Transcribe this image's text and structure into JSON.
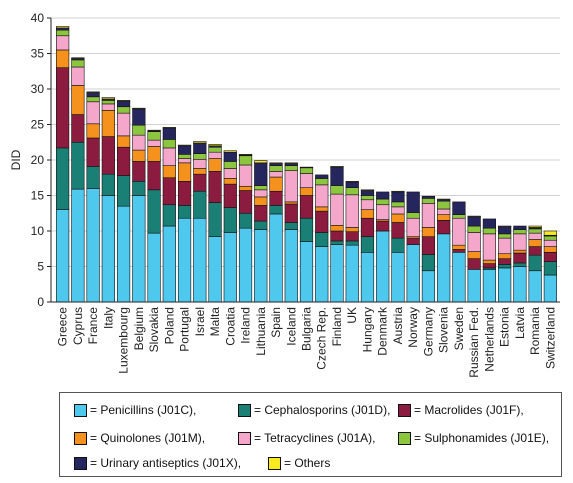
{
  "chart_data": {
    "type": "bar",
    "stacked": true,
    "ylabel": "DID",
    "xlabel": "",
    "ylim": [
      0,
      40
    ],
    "yticks": [
      0,
      5,
      10,
      15,
      20,
      25,
      30,
      35,
      40
    ],
    "grid": true,
    "categories": [
      "Greece",
      "Cyprus",
      "France",
      "Italy",
      "Luxembourg",
      "Belgium",
      "Slovakia",
      "Poland",
      "Portugal",
      "Israel",
      "Malta",
      "Croatia",
      "Ireland",
      "Lithuania",
      "Spain",
      "Iceland",
      "Bulgaria",
      "Czech Rep.",
      "Finland",
      "UK",
      "Hungary",
      "Denmark",
      "Austria",
      "Norway",
      "Germany",
      "Slovenia",
      "Sweden",
      "Russian Fed.",
      "Netherlands",
      "Estonia",
      "Latvia",
      "Romania",
      "Switzerland"
    ],
    "series": [
      {
        "name": "= Penicillins (J01C),",
        "color": "#4fc8ee",
        "values": [
          13.0,
          15.9,
          16.0,
          15.0,
          13.5,
          15.0,
          9.7,
          10.7,
          11.8,
          11.8,
          9.2,
          9.8,
          10.4,
          10.2,
          12.4,
          10.2,
          8.5,
          7.8,
          8.1,
          8.0,
          7.0,
          10.0,
          7.0,
          8.1,
          4.4,
          9.6,
          7.0,
          4.6,
          4.6,
          4.8,
          5.0,
          4.4,
          3.8
        ]
      },
      {
        "name": "= Cephalosporins (J01D),",
        "color": "#1a8076",
        "values": [
          8.7,
          6.6,
          3.1,
          3.0,
          4.3,
          2.0,
          6.1,
          3.0,
          1.8,
          3.8,
          4.8,
          3.5,
          2.1,
          1.2,
          1.2,
          1.0,
          3.3,
          2.0,
          0.5,
          0.6,
          2.2,
          0.0,
          2.0,
          0.0,
          2.3,
          0.0,
          0.0,
          0.0,
          0.2,
          0.5,
          0.5,
          2.2,
          1.9
        ]
      },
      {
        "name": "= Macrolides (J01F),",
        "color": "#8b1c3f",
        "values": [
          11.3,
          3.9,
          4.0,
          5.3,
          4.0,
          2.8,
          4.0,
          3.8,
          3.4,
          2.4,
          4.4,
          3.3,
          3.2,
          2.2,
          2.0,
          2.6,
          3.2,
          3.0,
          1.4,
          1.3,
          2.6,
          1.4,
          2.2,
          0.9,
          2.5,
          1.9,
          0.4,
          1.5,
          0.6,
          0.8,
          1.4,
          1.2,
          1.3
        ]
      },
      {
        "name": "= Quinolones (J01M),",
        "color": "#f5921e",
        "values": [
          2.5,
          4.1,
          2.0,
          3.7,
          1.6,
          1.6,
          2.1,
          1.7,
          2.6,
          0.8,
          1.8,
          0.8,
          0.6,
          1.2,
          2.0,
          0.3,
          1.1,
          0.6,
          0.8,
          0.6,
          1.2,
          0.2,
          1.2,
          0.2,
          1.3,
          0.8,
          0.6,
          1.0,
          0.5,
          0.7,
          0.4,
          1.0,
          0.8
        ]
      },
      {
        "name": "= Tetracyclines (J01A),",
        "color": "#f4a7cb",
        "values": [
          2.0,
          2.6,
          3.1,
          0.9,
          3.2,
          2.1,
          0.9,
          2.5,
          0.6,
          1.3,
          0.9,
          1.4,
          3.0,
          1.0,
          0.8,
          4.4,
          2.0,
          3.1,
          4.4,
          4.6,
          1.4,
          2.1,
          1.0,
          2.6,
          3.4,
          0.8,
          3.8,
          2.7,
          3.7,
          2.2,
          2.3,
          0.9,
          0.9
        ]
      },
      {
        "name": "= Sulphonamides (J01E),",
        "color": "#8cc63f",
        "values": [
          0.8,
          1.0,
          0.7,
          0.5,
          0.9,
          1.4,
          1.2,
          1.2,
          0.6,
          0.8,
          0.7,
          1.0,
          1.3,
          0.6,
          0.8,
          0.7,
          0.8,
          0.9,
          1.2,
          1.0,
          0.6,
          0.8,
          0.7,
          0.8,
          0.7,
          1.1,
          0.5,
          0.9,
          0.8,
          0.6,
          0.6,
          0.6,
          0.6
        ]
      },
      {
        "name": "= Urinary antiseptics (J01X)",
        "color": "#26265e",
        "values": [
          0.3,
          0.2,
          0.6,
          0.2,
          0.8,
          2.3,
          0.1,
          1.6,
          1.2,
          1.5,
          0.2,
          1.3,
          0.1,
          3.2,
          0.3,
          0.3,
          0.1,
          0.5,
          2.6,
          0.8,
          0.7,
          1.0,
          1.4,
          2.9,
          0.3,
          0.2,
          1.8,
          1.3,
          1.3,
          1.0,
          0.5,
          0.2,
          0.1
        ]
      },
      {
        "name": "= Others",
        "color": "#f8ea1e",
        "values": [
          0.2,
          0.1,
          0.1,
          0.2,
          0.1,
          0.1,
          0.1,
          0.1,
          0.1,
          0.2,
          0.2,
          0.2,
          0.1,
          0.3,
          0.1,
          0.1,
          0.0,
          0.0,
          0.1,
          0.1,
          0.1,
          0.0,
          0.1,
          0.0,
          0.0,
          0.1,
          0.0,
          0.1,
          0.0,
          0.1,
          0.0,
          0.2,
          0.6
        ]
      }
    ],
    "legend_position": "bottom"
  },
  "legend": {
    "items": [
      {
        "label": "= Penicillins (J01C),",
        "color": "#4fc8ee"
      },
      {
        "label": "= Cephalosporins (J01D),",
        "color": "#1a8076"
      },
      {
        "label": "= Macrolides (J01F),",
        "color": "#8b1c3f"
      },
      {
        "label": "= Quinolones (J01M),",
        "color": "#f5921e"
      },
      {
        "label": "= Tetracyclines (J01A),",
        "color": "#f4a7cb"
      },
      {
        "label": "= Sulphonamides (J01E),",
        "color": "#8cc63f"
      },
      {
        "label": "= Urinary antiseptics (J01X),",
        "color": "#26265e"
      },
      {
        "label": "= Others",
        "color": "#f8ea1e"
      }
    ]
  }
}
